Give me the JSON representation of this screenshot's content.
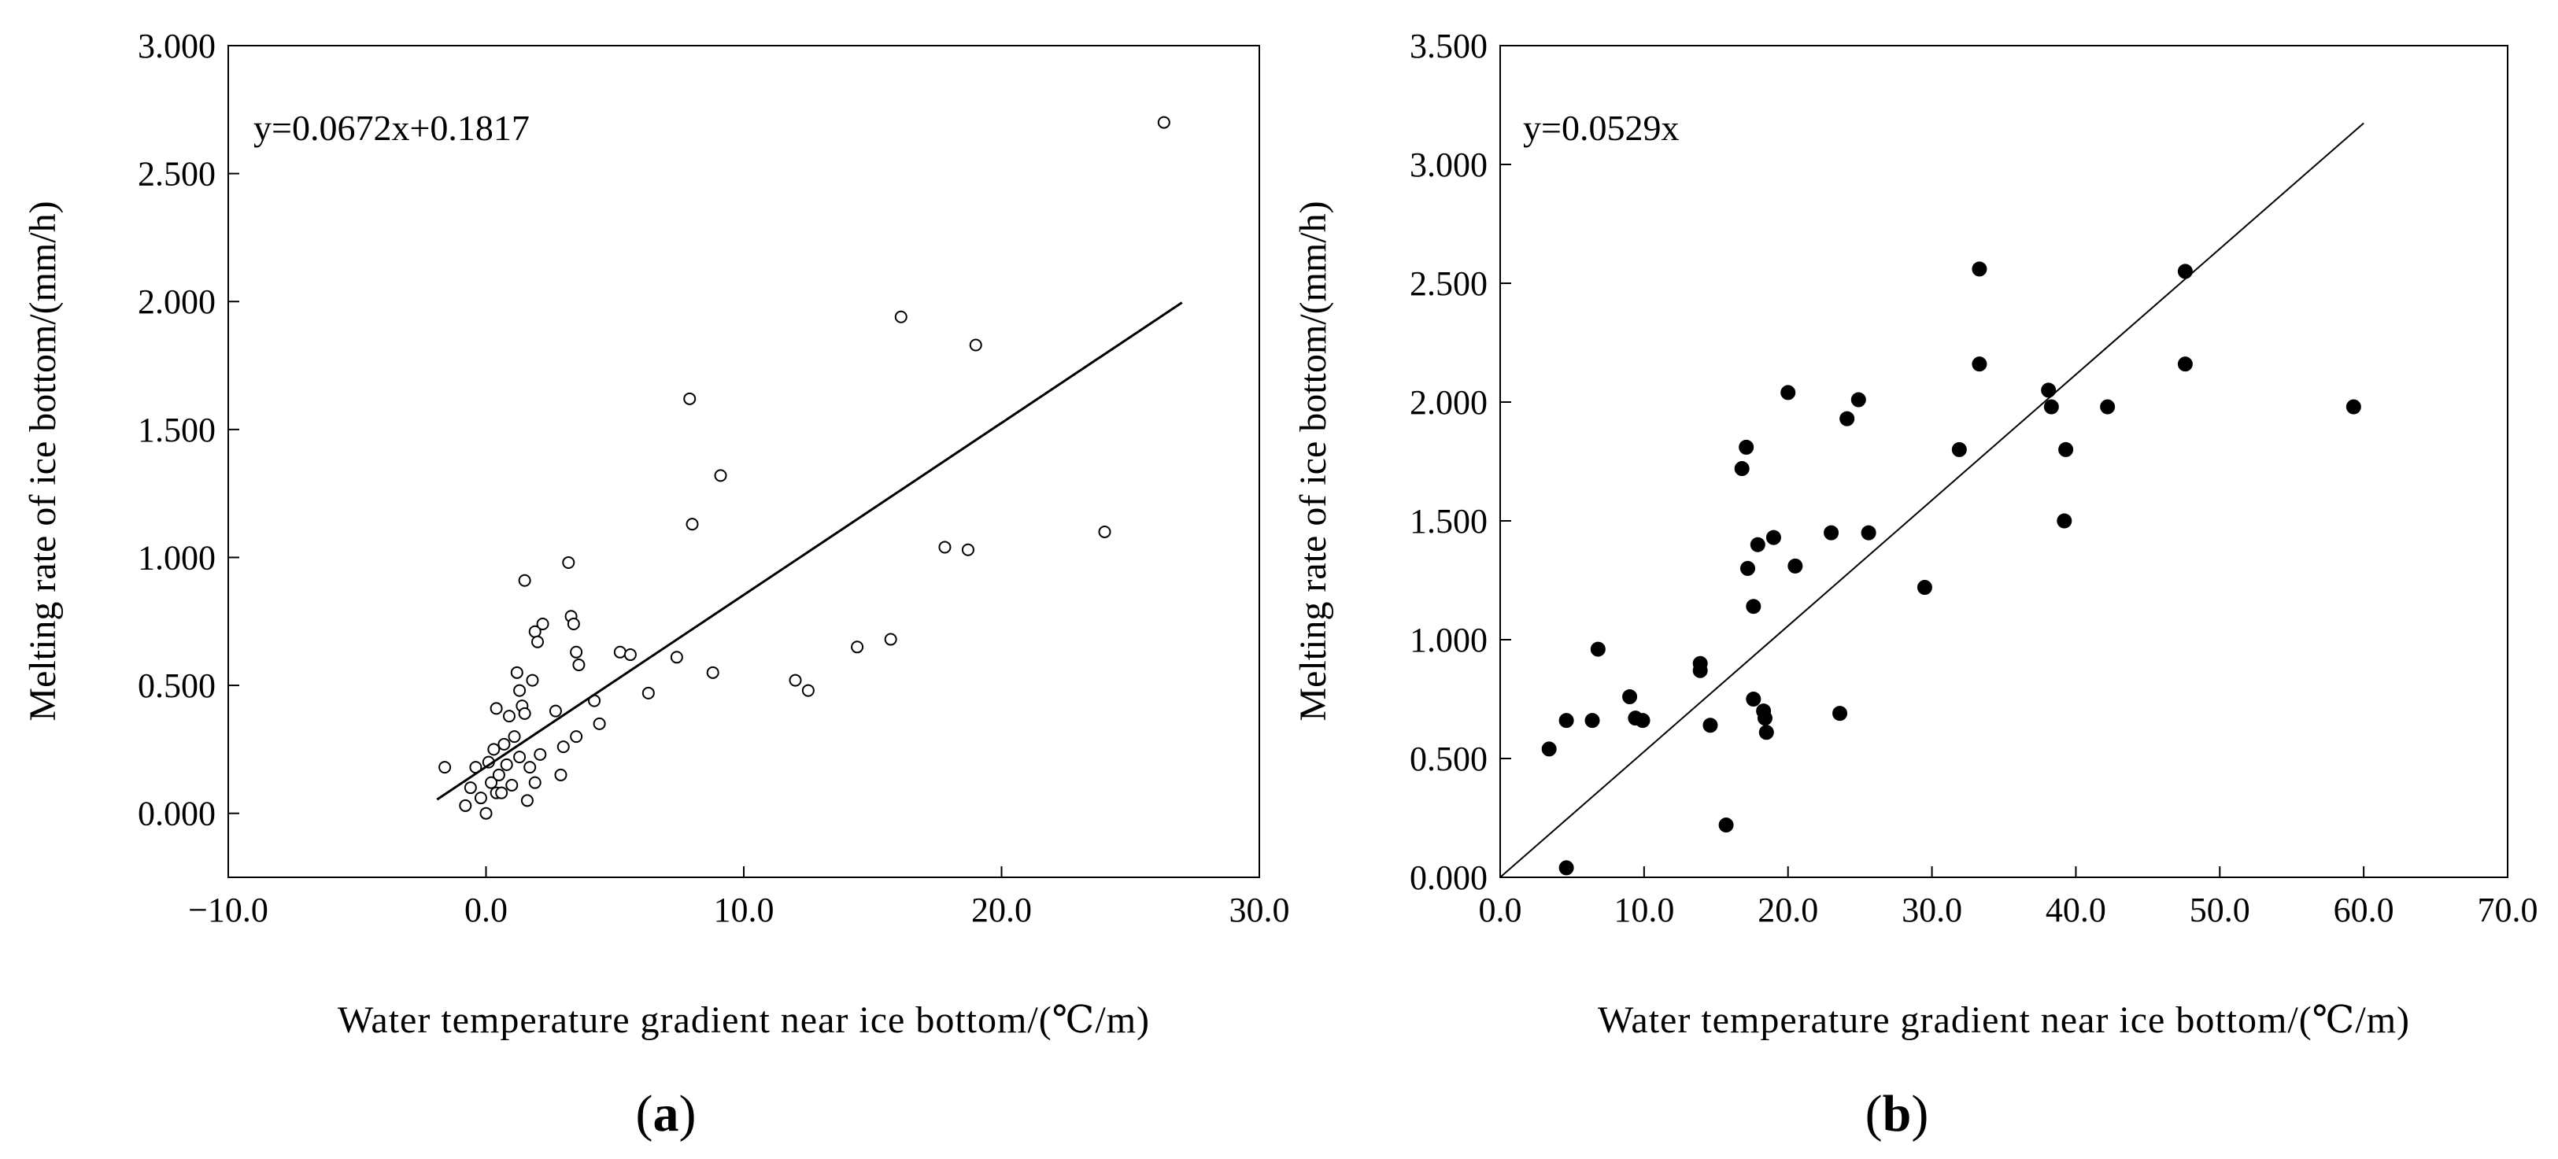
{
  "panels": [
    {
      "id": "a",
      "caption_letter": "a",
      "caption_open": "(",
      "caption_close": ")",
      "equation": "y=0.0672x+0.1817",
      "xlabel": "Water temperature gradient near ice bottom/(℃/m)",
      "ylabel": "Melting rate of ice bottom/(mm/h)",
      "marker": "open",
      "xlim": [
        -10,
        30
      ],
      "ylim": [
        -0.25,
        3.0
      ],
      "xticks": [
        -10,
        0,
        10,
        20,
        30
      ],
      "xtick_labels": [
        "−10.0",
        "0.0",
        "10.0",
        "20.0",
        "30.0"
      ],
      "yticks": [
        0,
        0.5,
        1.0,
        1.5,
        2.0,
        2.5,
        3.0
      ],
      "ytick_labels": [
        "0.000",
        "0.500",
        "1.000",
        "1.500",
        "2.000",
        "2.500",
        "3.000"
      ]
    },
    {
      "id": "b",
      "caption_letter": "b",
      "caption_open": "(",
      "caption_close": ")",
      "equation": "y=0.0529x",
      "xlabel": "Water temperature gradient near ice bottom/(℃/m)",
      "ylabel": "Melting rate of ice bottom/(mm/h)",
      "marker": "filled",
      "xlim": [
        0,
        70
      ],
      "ylim": [
        0,
        3.5
      ],
      "xticks": [
        0,
        10,
        20,
        30,
        40,
        50,
        60,
        70
      ],
      "xtick_labels": [
        "0.0",
        "10.0",
        "20.0",
        "30.0",
        "40.0",
        "50.0",
        "60.0",
        "70.0"
      ],
      "yticks": [
        0,
        0.5,
        1.0,
        1.5,
        2.0,
        2.5,
        3.0,
        3.5
      ],
      "ytick_labels": [
        "0.000",
        "0.500",
        "1.000",
        "1.500",
        "2.000",
        "2.500",
        "3.000",
        "3.500"
      ]
    }
  ],
  "chart_data": [
    {
      "type": "scatter",
      "panel": "a",
      "title": "",
      "xlabel": "Water temperature gradient near ice bottom/(℃/m)",
      "ylabel": "Melting rate of ice bottom/(mm/h)",
      "xlim": [
        -10,
        30
      ],
      "ylim": [
        -0.25,
        3.0
      ],
      "grid": false,
      "annotation": "y=0.0672x+0.1817",
      "marker": "open-circle",
      "points": [
        [
          -1.6,
          0.18
        ],
        [
          -0.8,
          0.03
        ],
        [
          -0.6,
          0.1
        ],
        [
          -0.4,
          0.18
        ],
        [
          -0.2,
          0.06
        ],
        [
          0.0,
          0.0
        ],
        [
          0.1,
          0.2
        ],
        [
          0.2,
          0.12
        ],
        [
          0.3,
          0.25
        ],
        [
          0.4,
          0.08
        ],
        [
          0.4,
          0.41
        ],
        [
          0.5,
          0.15
        ],
        [
          0.6,
          0.08
        ],
        [
          0.7,
          0.27
        ],
        [
          0.8,
          0.19
        ],
        [
          0.9,
          0.38
        ],
        [
          1.0,
          0.11
        ],
        [
          1.1,
          0.3
        ],
        [
          1.2,
          0.55
        ],
        [
          1.3,
          0.48
        ],
        [
          1.3,
          0.22
        ],
        [
          1.4,
          0.42
        ],
        [
          1.5,
          0.91
        ],
        [
          1.5,
          0.39
        ],
        [
          1.6,
          0.05
        ],
        [
          1.7,
          0.18
        ],
        [
          1.8,
          0.52
        ],
        [
          1.9,
          0.12
        ],
        [
          1.9,
          0.71
        ],
        [
          2.0,
          0.67
        ],
        [
          2.1,
          0.23
        ],
        [
          2.2,
          0.74
        ],
        [
          2.7,
          0.4
        ],
        [
          2.9,
          0.15
        ],
        [
          3.0,
          0.26
        ],
        [
          3.2,
          0.98
        ],
        [
          3.3,
          0.77
        ],
        [
          3.4,
          0.74
        ],
        [
          3.5,
          0.3
        ],
        [
          3.5,
          0.63
        ],
        [
          3.6,
          0.58
        ],
        [
          4.2,
          0.44
        ],
        [
          4.4,
          0.35
        ],
        [
          5.2,
          0.63
        ],
        [
          5.6,
          0.62
        ],
        [
          6.3,
          0.47
        ],
        [
          7.4,
          0.61
        ],
        [
          7.9,
          1.62
        ],
        [
          8.0,
          1.13
        ],
        [
          8.8,
          0.55
        ],
        [
          9.1,
          1.32
        ],
        [
          12.0,
          0.52
        ],
        [
          12.5,
          0.48
        ],
        [
          14.4,
          0.65
        ],
        [
          15.7,
          0.68
        ],
        [
          16.1,
          1.94
        ],
        [
          17.8,
          1.04
        ],
        [
          18.7,
          1.03
        ],
        [
          19.0,
          1.83
        ],
        [
          24.0,
          1.1
        ],
        [
          26.3,
          2.7
        ]
      ],
      "fit": {
        "slope": 0.0672,
        "intercept": 0.1817,
        "x_range": [
          -1.9,
          27.0
        ]
      }
    },
    {
      "type": "scatter",
      "panel": "b",
      "title": "",
      "xlabel": "Water temperature gradient near ice bottom/(℃/m)",
      "ylabel": "Melting rate of ice bottom/(mm/h)",
      "xlim": [
        0,
        70
      ],
      "ylim": [
        0,
        3.5
      ],
      "grid": false,
      "annotation": "y=0.0529x",
      "marker": "filled-circle",
      "points": [
        [
          3.4,
          0.54
        ],
        [
          4.6,
          0.66
        ],
        [
          4.6,
          0.04
        ],
        [
          6.4,
          0.66
        ],
        [
          6.8,
          0.96
        ],
        [
          9.0,
          0.76
        ],
        [
          9.4,
          0.67
        ],
        [
          9.9,
          0.66
        ],
        [
          13.9,
          0.9
        ],
        [
          13.9,
          0.87
        ],
        [
          14.6,
          0.64
        ],
        [
          15.7,
          0.22
        ],
        [
          16.8,
          1.72
        ],
        [
          17.1,
          1.81
        ],
        [
          17.2,
          1.3
        ],
        [
          17.6,
          1.14
        ],
        [
          17.6,
          0.75
        ],
        [
          17.9,
          1.4
        ],
        [
          18.3,
          0.7
        ],
        [
          18.4,
          0.67
        ],
        [
          18.5,
          0.61
        ],
        [
          19.0,
          1.43
        ],
        [
          20.0,
          2.04
        ],
        [
          20.5,
          1.31
        ],
        [
          23.0,
          1.45
        ],
        [
          23.6,
          0.69
        ],
        [
          24.1,
          1.93
        ],
        [
          24.9,
          2.01
        ],
        [
          25.6,
          1.45
        ],
        [
          29.5,
          1.22
        ],
        [
          31.9,
          1.8
        ],
        [
          33.3,
          2.56
        ],
        [
          33.3,
          2.16
        ],
        [
          38.1,
          2.05
        ],
        [
          38.3,
          1.98
        ],
        [
          39.2,
          1.5
        ],
        [
          39.3,
          1.8
        ],
        [
          42.2,
          1.98
        ],
        [
          47.6,
          2.55
        ],
        [
          47.6,
          2.16
        ],
        [
          59.3,
          1.98
        ]
      ],
      "fit": {
        "slope": 0.0529,
        "intercept": 0,
        "x_range": [
          0,
          60.0
        ]
      }
    }
  ]
}
